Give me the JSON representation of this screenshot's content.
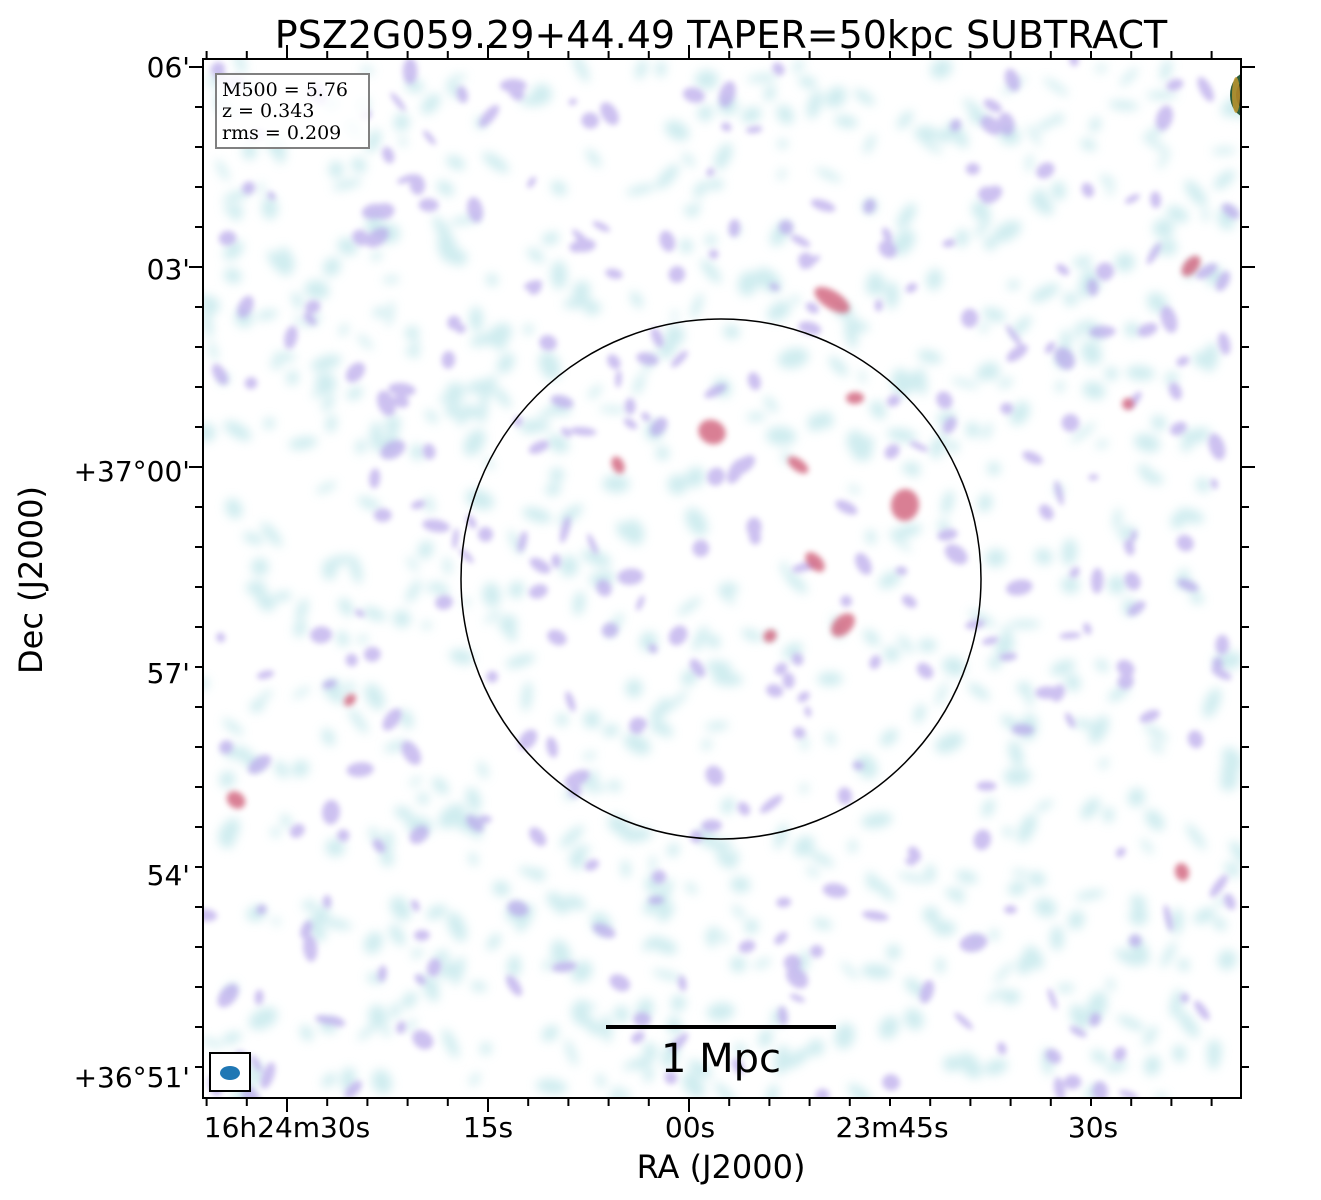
{
  "title": "PSZ2G059.29+44.49 TAPER=50kpc SUBTRACT",
  "info_box": {
    "m500": "M500 = 5.76",
    "z": "z = 0.343",
    "rms": "rms = 0.209"
  },
  "axes": {
    "xlabel": "RA (J2000)",
    "ylabel": "Dec (J2000)",
    "x_ticks": [
      "16h24m30s",
      "15s",
      "00s",
      "23m45s",
      "30s"
    ],
    "y_ticks": [
      "06'",
      "03'",
      "+37°00'",
      "57'",
      "54'",
      "+36°51'"
    ]
  },
  "scale_bar": {
    "label": "1 Mpc"
  },
  "colors": {
    "frame": "#000000",
    "beam": "#1f77b4",
    "map_low": "#bfe6ea",
    "map_mid": "#b7a6ea",
    "map_high": "#d0607a"
  },
  "overlays": [
    "r500-circle",
    "beam-ellipse",
    "scale-bar"
  ]
}
